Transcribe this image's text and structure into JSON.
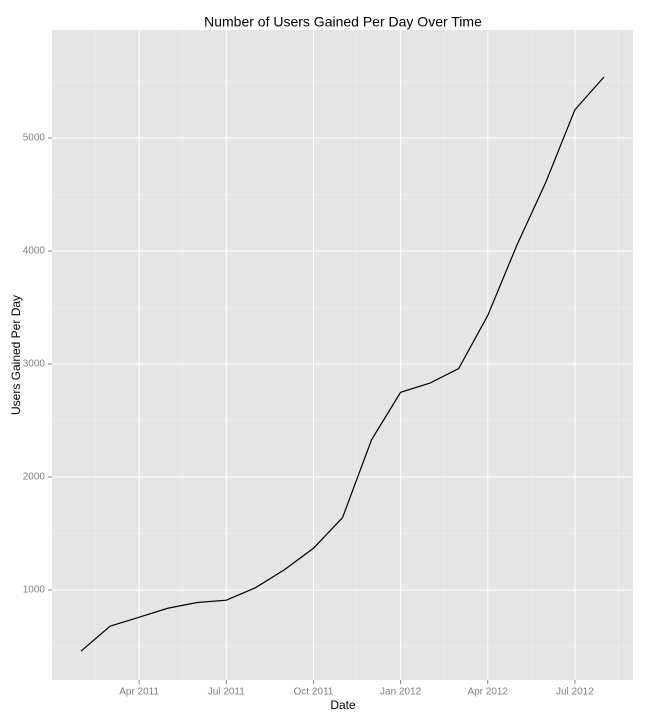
{
  "chart_data": {
    "type": "line",
    "title": "Number of Users Gained Per Day Over Time",
    "x_label": "Date",
    "y_label": "Users Gained Per Day",
    "x": [
      "2011-02",
      "2011-03",
      "2011-04",
      "2011-05",
      "2011-06",
      "2011-07",
      "2011-08",
      "2011-09",
      "2011-10",
      "2011-11",
      "2011-12",
      "2012-01",
      "2012-02",
      "2012-03",
      "2012-04",
      "2012-05",
      "2012-06",
      "2012-07",
      "2012-08"
    ],
    "series": [
      {
        "name": "Users Gained Per Day",
        "color": "#000000",
        "values": [
          460,
          680,
          760,
          840,
          890,
          910,
          1020,
          1180,
          1370,
          1640,
          2330,
          2750,
          2830,
          2960,
          3430,
          4050,
          4610,
          5250,
          5540
        ]
      }
    ],
    "xlim": [
      "2011-01",
      "2012-09"
    ],
    "xticks": [
      {
        "value": "2011-04",
        "label": "Apr 2011"
      },
      {
        "value": "2011-07",
        "label": "Jul 2011"
      },
      {
        "value": "2011-10",
        "label": "Oct 2011"
      },
      {
        "value": "2012-01",
        "label": "Jan 2012"
      },
      {
        "value": "2012-04",
        "label": "Apr 2012"
      },
      {
        "value": "2012-07",
        "label": "Jul 2012"
      }
    ],
    "ylim": [
      204,
      5956
    ],
    "yticks": [
      1000,
      2000,
      3000,
      4000,
      5000
    ],
    "grid": true
  }
}
